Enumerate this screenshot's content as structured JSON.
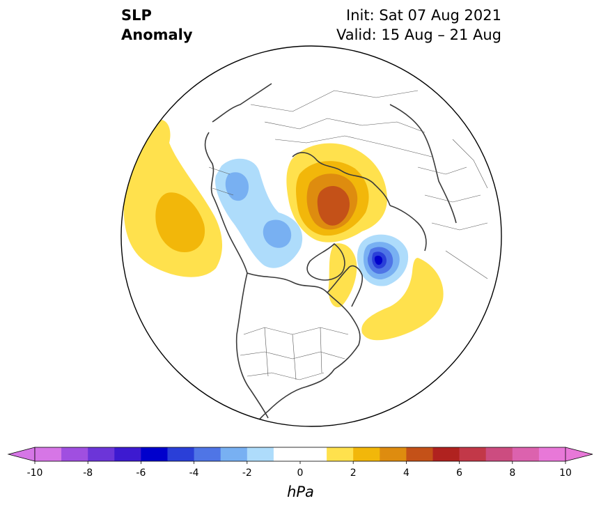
{
  "title": {
    "line1": "SLP",
    "line2": "Anomaly",
    "init": "Init: Sat 07 Aug 2021",
    "valid": "Valid: 15 Aug – 21 Aug"
  },
  "colorbar": {
    "unit": "hPa",
    "min": -10,
    "max": 10,
    "step": 1,
    "extend": "both",
    "ticks": [
      "-10",
      "-8",
      "-6",
      "-4",
      "-2",
      "0",
      "2",
      "4",
      "6",
      "8",
      "10"
    ],
    "colors": [
      "#d676e6",
      "#a04fe0",
      "#6c35d8",
      "#3d1ad0",
      "#0000cc",
      "#2a3fd8",
      "#4f75e6",
      "#78b0f2",
      "#aedcfb",
      "#ffffff",
      "#ffffff",
      "#ffe14d",
      "#f2b70a",
      "#de8c0f",
      "#c45118",
      "#b0221f",
      "#c23848",
      "#cc4c80",
      "#dc62ae",
      "#e878d8"
    ],
    "under_color": "#d676e6",
    "over_color": "#e878d8"
  },
  "map": {
    "projection": "north-polar-stereographic",
    "region": "Northern Hemisphere (North America / Atlantic / Arctic)",
    "features": [
      {
        "name": "North Pacific positive anomaly",
        "center_value": 3,
        "sign": "positive"
      },
      {
        "name": "Arctic / Siberia positive anomaly",
        "center_value": 4,
        "sign": "positive"
      },
      {
        "name": "Greenland-Iceland negative anomaly",
        "center_value": -6,
        "sign": "negative"
      },
      {
        "name": "Scandinavia / Barents negative anomaly",
        "center_value": -3,
        "sign": "negative"
      },
      {
        "name": "North Atlantic positive anomaly",
        "center_value": 2,
        "sign": "positive"
      }
    ]
  }
}
